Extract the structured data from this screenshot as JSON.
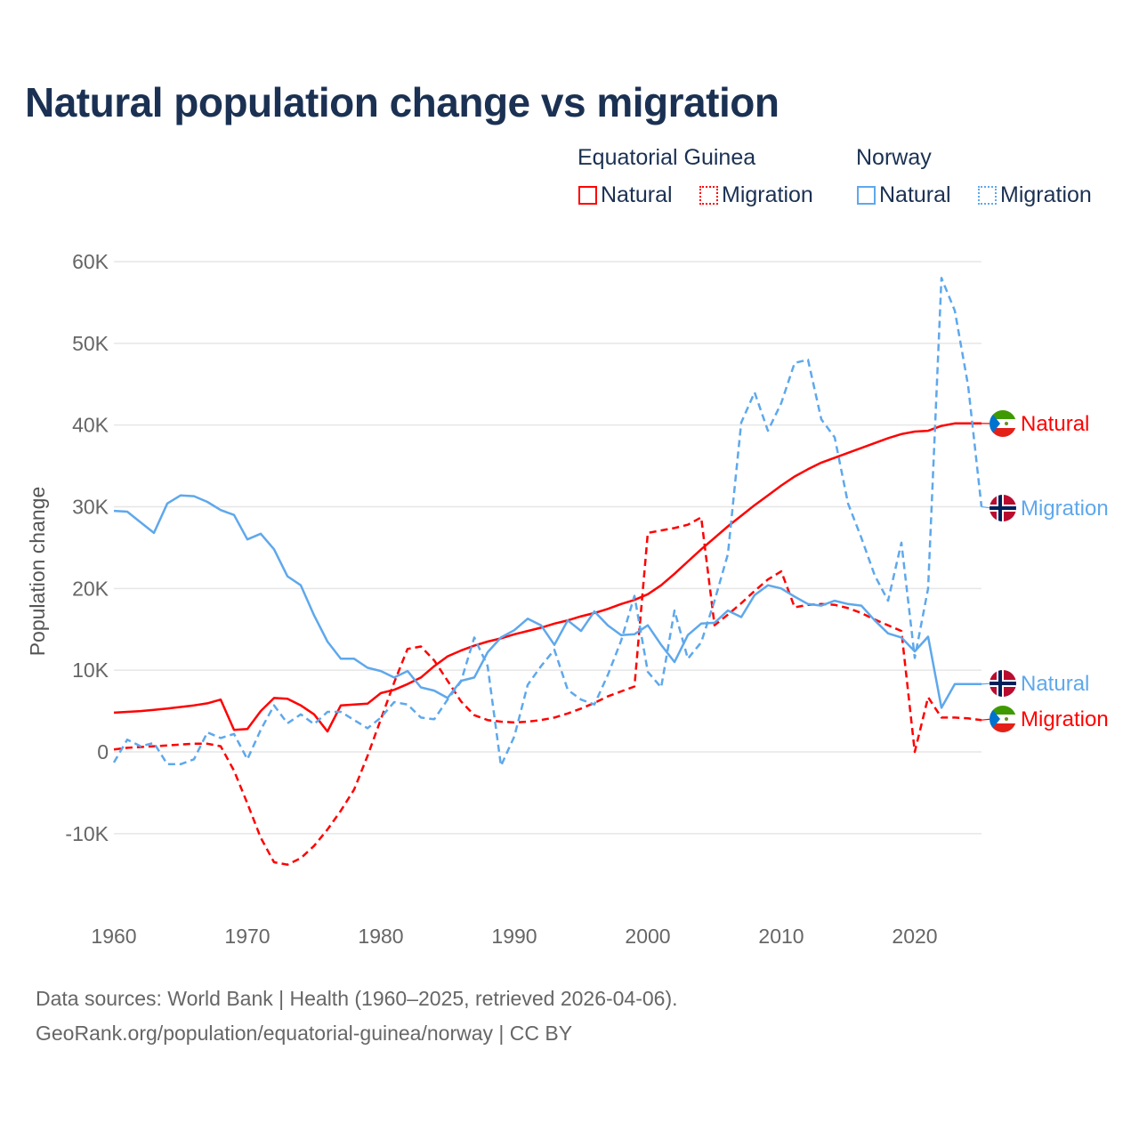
{
  "title": "Natural population change vs migration",
  "legend": {
    "groups": [
      {
        "name": "Equatorial Guinea",
        "items": [
          "Natural",
          "Migration"
        ]
      },
      {
        "name": "Norway",
        "items": [
          "Natural",
          "Migration"
        ]
      }
    ]
  },
  "sources": {
    "line1": "Data sources: World Bank | Health (1960–2025, retrieved 2026-04-06).",
    "line2": "GeoRank.org/population/equatorial-guinea/norway | CC BY"
  },
  "colors": {
    "eq_guinea": "#ff0000",
    "norway": "#5ea8ec",
    "title": "#1b3153"
  },
  "chart_data": {
    "type": "line",
    "title": "Natural population change vs migration",
    "xlabel": "",
    "ylabel": "Population change",
    "xlim": [
      1960,
      2025
    ],
    "ylim": [
      -10000,
      60000
    ],
    "x_ticks": [
      1960,
      1970,
      1980,
      1990,
      2000,
      2010,
      2020
    ],
    "x_tick_labels": [
      "1960",
      "1970",
      "1980",
      "1990",
      "2000",
      "2010",
      "2020"
    ],
    "y_ticks": [
      -10000,
      0,
      10000,
      20000,
      30000,
      40000,
      50000,
      60000
    ],
    "y_tick_labels": [
      "-10K",
      "0",
      "10K",
      "20K",
      "30K",
      "40K",
      "50K",
      "60K"
    ],
    "grid": true,
    "legend_position": "top-right",
    "x_start": 1960,
    "series": [
      {
        "name": "Equatorial Guinea Natural",
        "end_label": "Natural",
        "country": "Equatorial Guinea",
        "style": "solid",
        "color": "#ff0000",
        "values": [
          4800,
          4900,
          5000,
          5150,
          5300,
          5500,
          5700,
          5950,
          6400,
          2700,
          2800,
          5000,
          6600,
          6500,
          5700,
          4600,
          2500,
          5700,
          5800,
          5900,
          7200,
          7600,
          8300,
          9100,
          10500,
          11700,
          12400,
          13000,
          13500,
          13900,
          14400,
          14800,
          15200,
          15700,
          16100,
          16600,
          17000,
          17500,
          18100,
          18600,
          19300,
          20400,
          21800,
          23300,
          24800,
          26200,
          27600,
          28900,
          30200,
          31400,
          32600,
          33700,
          34600,
          35400,
          36000,
          36600,
          37200,
          37800,
          38400,
          38900,
          39200,
          39300,
          39900,
          40200,
          40200,
          40200
        ]
      },
      {
        "name": "Equatorial Guinea Migration",
        "end_label": "Migration",
        "country": "Equatorial Guinea",
        "style": "dashed",
        "color": "#ff0000",
        "values": [
          300,
          500,
          600,
          700,
          800,
          900,
          1000,
          1000,
          700,
          -2300,
          -6300,
          -10500,
          -13500,
          -13800,
          -13000,
          -11500,
          -9500,
          -7200,
          -4600,
          -500,
          4000,
          8500,
          12600,
          12900,
          11200,
          8700,
          6200,
          4500,
          3900,
          3700,
          3600,
          3700,
          3900,
          4200,
          4700,
          5300,
          6000,
          6800,
          7400,
          8000,
          26800,
          27100,
          27400,
          27800,
          28700,
          15500,
          16800,
          18200,
          19700,
          21100,
          22100,
          17700,
          18000,
          18100,
          18000,
          17600,
          17000,
          16200,
          15500,
          14800,
          0,
          6700,
          4200,
          4200,
          4100,
          3900
        ]
      },
      {
        "name": "Norway Natural",
        "end_label": "Natural",
        "country": "Norway",
        "style": "solid",
        "color": "#5ea8ec",
        "values": [
          29500,
          29400,
          28100,
          26800,
          30400,
          31400,
          31300,
          30600,
          29600,
          29000,
          26000,
          26700,
          24800,
          21500,
          20400,
          16700,
          13500,
          11400,
          11400,
          10300,
          9900,
          9100,
          9900,
          7900,
          7500,
          6600,
          8700,
          9100,
          12200,
          14000,
          14900,
          16300,
          15500,
          13100,
          16100,
          14800,
          17200,
          15500,
          14300,
          14400,
          15500,
          13100,
          11000,
          14300,
          15700,
          15800,
          17300,
          16500,
          19200,
          20400,
          20000,
          19000,
          18100,
          17900,
          18500,
          18100,
          17900,
          16100,
          14500,
          14000,
          12300,
          14100,
          5400,
          8300,
          8300,
          8300
        ]
      },
      {
        "name": "Norway Migration",
        "end_label": "Migration",
        "country": "Norway",
        "style": "dashed",
        "color": "#5ea8ec",
        "values": [
          -1300,
          1500,
          700,
          1100,
          -1500,
          -1500,
          -900,
          2400,
          1700,
          2200,
          -900,
          2700,
          5700,
          3500,
          4600,
          3400,
          4900,
          4900,
          3900,
          2900,
          4200,
          6100,
          5800,
          4200,
          4000,
          6400,
          8600,
          14000,
          10500,
          -1700,
          1900,
          8200,
          10500,
          12500,
          7600,
          6400,
          5800,
          9400,
          13600,
          19100,
          9800,
          7900,
          17300,
          11400,
          13400,
          18500,
          24200,
          40300,
          44000,
          39300,
          42700,
          47600,
          48000,
          40700,
          38500,
          30400,
          26200,
          21600,
          18500,
          25600,
          11500,
          20000,
          58000,
          54000,
          44800,
          30000
        ]
      }
    ]
  }
}
